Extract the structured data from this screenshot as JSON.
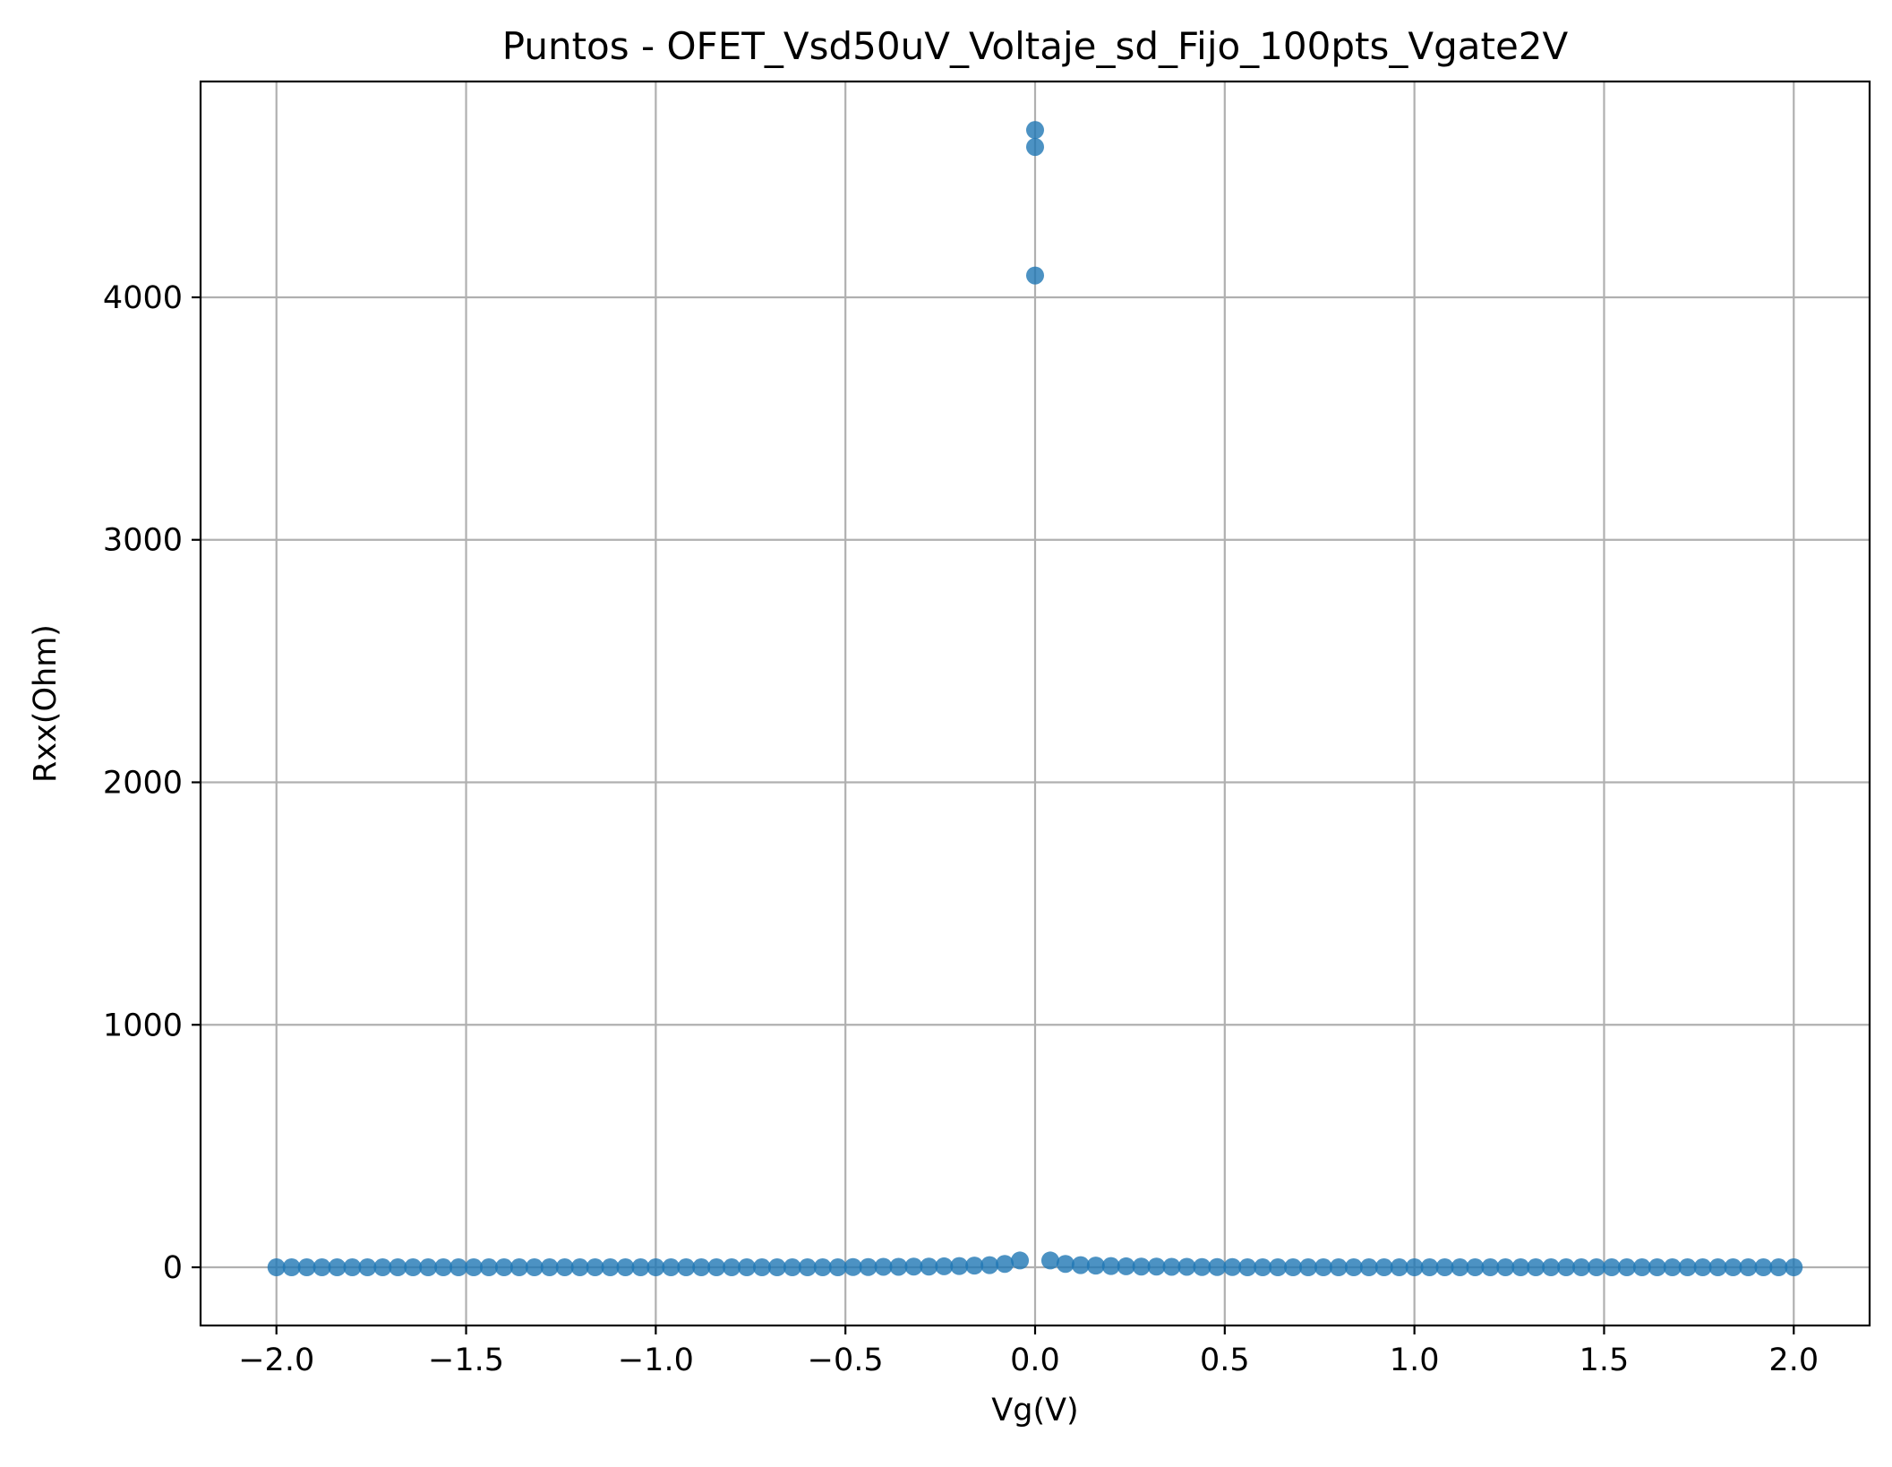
{
  "chart_data": {
    "type": "scatter",
    "title": "Puntos - OFET_Vsd50uV_Voltaje_sd_Fijo_100pts_Vgate2V",
    "xlabel": "Vg(V)",
    "ylabel": "Rxx(Ohm)",
    "xlim": [
      -2.2,
      2.2
    ],
    "ylim": [
      -240,
      4890
    ],
    "xticks": [
      -2.0,
      -1.5,
      -1.0,
      -0.5,
      0.0,
      0.5,
      1.0,
      1.5,
      2.0
    ],
    "xtick_labels": [
      "−2.0",
      "−1.5",
      "−1.0",
      "−0.5",
      "0.0",
      "0.5",
      "1.0",
      "1.5",
      "2.0"
    ],
    "yticks": [
      0,
      1000,
      2000,
      3000,
      4000
    ],
    "ytick_labels": [
      "0",
      "1000",
      "2000",
      "3000",
      "4000"
    ],
    "grid": true,
    "marker_color": "#1f77b4",
    "grid_color": "#b0b0b0",
    "x": [
      -2.0,
      -1.96,
      -1.92,
      -1.88,
      -1.84,
      -1.8,
      -1.76,
      -1.72,
      -1.68,
      -1.64,
      -1.6,
      -1.56,
      -1.52,
      -1.48,
      -1.44,
      -1.4,
      -1.36,
      -1.32,
      -1.28,
      -1.24,
      -1.2,
      -1.16,
      -1.12,
      -1.08,
      -1.04,
      -1.0,
      -0.96,
      -0.92,
      -0.88,
      -0.84,
      -0.8,
      -0.76,
      -0.72,
      -0.68,
      -0.64,
      -0.6,
      -0.56,
      -0.52,
      -0.48,
      -0.44,
      -0.4,
      -0.36,
      -0.32,
      -0.28,
      -0.24,
      -0.2,
      -0.16,
      -0.12,
      -0.08,
      -0.04,
      0.0,
      0.0,
      0.0,
      0.04,
      0.08,
      0.12,
      0.16,
      0.2,
      0.24,
      0.28,
      0.32,
      0.36,
      0.4,
      0.44,
      0.48,
      0.52,
      0.56,
      0.6,
      0.64,
      0.68,
      0.72,
      0.76,
      0.8,
      0.84,
      0.88,
      0.92,
      0.96,
      1.0,
      1.04,
      1.08,
      1.12,
      1.16,
      1.2,
      1.24,
      1.28,
      1.32,
      1.36,
      1.4,
      1.44,
      1.48,
      1.52,
      1.56,
      1.6,
      1.64,
      1.68,
      1.72,
      1.76,
      1.8,
      1.84,
      1.88,
      1.92,
      1.96,
      2.0
    ],
    "y": [
      0,
      0,
      0,
      0,
      0,
      0,
      0,
      0,
      0,
      0,
      0,
      0,
      0,
      0,
      0,
      0,
      0,
      0,
      0,
      0,
      0,
      0,
      0,
      0,
      0,
      0,
      0,
      0,
      0,
      0,
      0,
      0,
      0,
      0,
      0,
      0,
      0,
      0,
      1,
      1,
      2,
      2,
      3,
      3,
      4,
      5,
      7,
      9,
      14,
      28,
      4690,
      4620,
      4090,
      28,
      14,
      9,
      7,
      5,
      4,
      3,
      3,
      2,
      2,
      1,
      1,
      1,
      0,
      0,
      0,
      0,
      0,
      0,
      0,
      0,
      0,
      0,
      0,
      0,
      0,
      0,
      0,
      0,
      0,
      0,
      0,
      0,
      0,
      0,
      0,
      0,
      0,
      0,
      0,
      0,
      0,
      0,
      0,
      0,
      0,
      0,
      0,
      0,
      0
    ]
  }
}
